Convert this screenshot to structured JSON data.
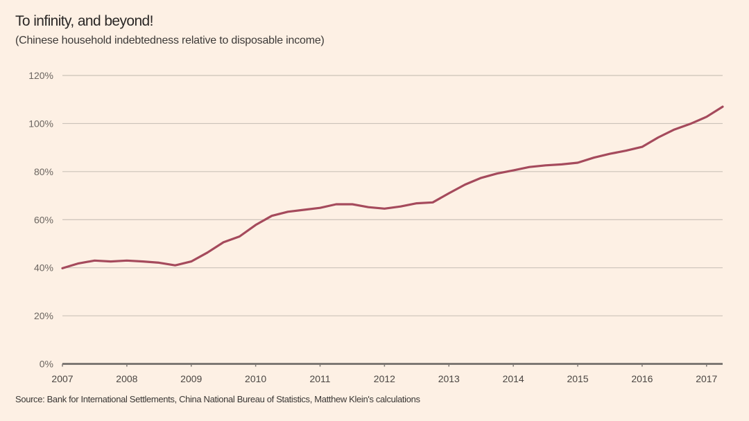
{
  "chart_data": {
    "type": "line",
    "title": "To infinity, and beyond!",
    "subtitle": "(Chinese household indebtedness relative to disposable income)",
    "source": "Source: Bank for International Settlements, China National Bureau of Statistics, Matthew Klein's calculations",
    "xlabel": "",
    "ylabel": "",
    "ylim": [
      0,
      120
    ],
    "xlim": [
      2007.0,
      2017.25
    ],
    "y_ticks": [
      0,
      20,
      40,
      60,
      80,
      100,
      120
    ],
    "y_tick_labels": [
      "0%",
      "20%",
      "40%",
      "60%",
      "80%",
      "100%",
      "120%"
    ],
    "x_ticks": [
      2007,
      2008,
      2009,
      2010,
      2011,
      2012,
      2013,
      2014,
      2015,
      2016,
      2017
    ],
    "x_tick_labels": [
      "2007",
      "2008",
      "2009",
      "2010",
      "2011",
      "2012",
      "2013",
      "2014",
      "2015",
      "2016",
      "2017"
    ],
    "grid": true,
    "colors": {
      "line": "#a54a5c",
      "grid": "#cbc2b8",
      "axis": "#7d7874",
      "background": "#fdf0e4"
    },
    "series": [
      {
        "name": "Household debt / disposable income",
        "x": [
          2007.0,
          2007.25,
          2007.5,
          2007.75,
          2008.0,
          2008.25,
          2008.5,
          2008.75,
          2009.0,
          2009.25,
          2009.5,
          2009.75,
          2010.0,
          2010.25,
          2010.5,
          2010.75,
          2011.0,
          2011.25,
          2011.5,
          2011.75,
          2012.0,
          2012.25,
          2012.5,
          2012.75,
          2013.0,
          2013.25,
          2013.5,
          2013.75,
          2014.0,
          2014.25,
          2014.5,
          2014.75,
          2015.0,
          2015.25,
          2015.5,
          2015.75,
          2016.0,
          2016.25,
          2016.5,
          2016.75,
          2017.0,
          2017.25
        ],
        "values": [
          39.8,
          41.8,
          43.0,
          42.6,
          43.0,
          42.6,
          42.1,
          41.0,
          42.6,
          46.3,
          50.6,
          53.0,
          57.8,
          61.6,
          63.3,
          64.1,
          64.9,
          66.4,
          66.4,
          65.2,
          64.6,
          65.5,
          66.8,
          67.2,
          71.0,
          74.6,
          77.4,
          79.2,
          80.5,
          81.9,
          82.6,
          83.0,
          83.7,
          85.8,
          87.4,
          88.7,
          90.3,
          94.2,
          97.5,
          99.9,
          102.8,
          107.0
        ]
      }
    ]
  }
}
